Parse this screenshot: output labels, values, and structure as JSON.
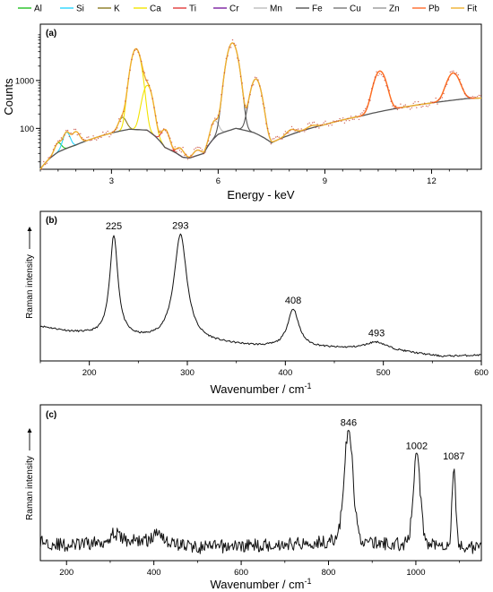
{
  "chart_data": [
    {
      "type": "line",
      "panel": "(a)",
      "xlabel": "Energy - keV",
      "ylabel": "Counts",
      "xlim": [
        1,
        13.4
      ],
      "ylim": [
        14,
        15000
      ],
      "yscale": "log",
      "x_ticks": [
        3,
        6,
        9,
        12
      ],
      "y_ticks": [
        {
          "value": 100,
          "label": "100"
        },
        {
          "value": 1000,
          "label": "1000"
        }
      ],
      "legend_position": "top",
      "legend": [
        {
          "name": "Al",
          "color": "#22c022"
        },
        {
          "name": "Si",
          "color": "#2ad6ff"
        },
        {
          "name": "K",
          "color": "#8a7a20"
        },
        {
          "name": "Ca",
          "color": "#f2e300"
        },
        {
          "name": "Ti",
          "color": "#e03a3a"
        },
        {
          "name": "Cr",
          "color": "#7a1fa0"
        },
        {
          "name": "Mn",
          "color": "#bdbdbd"
        },
        {
          "name": "Fe",
          "color": "#555555"
        },
        {
          "name": "Cu",
          "color": "#777777"
        },
        {
          "name": "Zn",
          "color": "#999999"
        },
        {
          "name": "Pb",
          "color": "#ff6a2a"
        },
        {
          "name": "Fit",
          "color": "#f0b030"
        }
      ],
      "background": {
        "x": [
          1.0,
          1.5,
          2.0,
          2.5,
          3.0,
          3.5,
          4.0,
          4.5,
          5.0,
          5.2,
          5.6,
          6.0,
          6.5,
          7.0,
          7.5,
          8.0,
          9.0,
          10.0,
          11.0,
          12.0,
          13.0,
          13.4
        ],
        "y": [
          14,
          32,
          45,
          62,
          80,
          96,
          92,
          40,
          25,
          24,
          30,
          75,
          100,
          82,
          50,
          72,
          120,
          180,
          260,
          340,
          420,
          430
        ]
      },
      "peaks": [
        {
          "x": 1.5,
          "height": 18,
          "width": 0.09,
          "element": "Al"
        },
        {
          "x": 1.74,
          "height": 45,
          "width": 0.09,
          "element": "Si"
        },
        {
          "x": 2.0,
          "height": 40,
          "width": 0.1,
          "element": "Fit"
        },
        {
          "x": 3.31,
          "height": 80,
          "width": 0.1,
          "element": "K"
        },
        {
          "x": 3.69,
          "height": 4500,
          "width": 0.12,
          "element": "Ca"
        },
        {
          "x": 4.01,
          "height": 700,
          "width": 0.12,
          "element": "Ca"
        },
        {
          "x": 4.51,
          "height": 55,
          "width": 0.1,
          "element": "Ti"
        },
        {
          "x": 4.93,
          "height": 12,
          "width": 0.1,
          "element": "Ti"
        },
        {
          "x": 5.41,
          "height": 8,
          "width": 0.1,
          "element": "Cr"
        },
        {
          "x": 5.9,
          "height": 80,
          "width": 0.1,
          "element": "Mn"
        },
        {
          "x": 6.4,
          "height": 6000,
          "width": 0.13,
          "element": "Fe"
        },
        {
          "x": 7.06,
          "height": 1000,
          "width": 0.13,
          "element": "Fe"
        },
        {
          "x": 8.05,
          "height": 20,
          "width": 0.12,
          "element": "Cu"
        },
        {
          "x": 8.64,
          "height": 12,
          "width": 0.12,
          "element": "Zn"
        },
        {
          "x": 10.55,
          "height": 1350,
          "width": 0.15,
          "element": "Pb"
        },
        {
          "x": 12.61,
          "height": 1050,
          "width": 0.16,
          "element": "Pb"
        }
      ]
    },
    {
      "type": "line",
      "panel": "(b)",
      "xlabel": "Wavenumber / cm",
      "xlabel_sup": "-1",
      "ylabel": "Raman intensity",
      "xlim": [
        150,
        600
      ],
      "ylim": [
        0,
        1.05
      ],
      "x_ticks": [
        200,
        300,
        400,
        500,
        600
      ],
      "baseline": {
        "x": [
          150,
          180,
          215,
          250,
          280,
          330,
          370,
          395,
          430,
          470,
          520,
          560,
          600
        ],
        "y": [
          0.24,
          0.2,
          0.17,
          0.15,
          0.14,
          0.12,
          0.1,
          0.09,
          0.09,
          0.08,
          0.06,
          0.03,
          0.04
        ]
      },
      "peaks": [
        {
          "x": 225,
          "height": 0.71,
          "width": 5,
          "label": "225"
        },
        {
          "x": 293,
          "height": 0.75,
          "width": 8,
          "label": "293"
        },
        {
          "x": 408,
          "height": 0.27,
          "width": 7,
          "label": "408"
        },
        {
          "x": 493,
          "height": 0.06,
          "width": 14,
          "label": "493"
        }
      ]
    },
    {
      "type": "line",
      "panel": "(c)",
      "xlabel": "Wavenumber / cm",
      "xlabel_sup": "-1",
      "ylabel": "Raman intensity",
      "xlim": [
        140,
        1150
      ],
      "ylim": [
        0,
        1.05
      ],
      "x_ticks": [
        200,
        400,
        600,
        800,
        1000
      ],
      "baseline": {
        "x": [
          140,
          200,
          300,
          400,
          500,
          600,
          700,
          800,
          830,
          900,
          950,
          1050,
          1150
        ],
        "y": [
          0.13,
          0.1,
          0.13,
          0.14,
          0.09,
          0.1,
          0.11,
          0.13,
          0.15,
          0.12,
          0.11,
          0.12,
          0.08
        ]
      },
      "peaks": [
        {
          "x": 310,
          "height": 0.05,
          "width": 12
        },
        {
          "x": 412,
          "height": 0.07,
          "width": 8
        },
        {
          "x": 846,
          "height": 0.73,
          "width": 10,
          "label": "846"
        },
        {
          "x": 1002,
          "height": 0.6,
          "width": 8,
          "label": "1002"
        },
        {
          "x": 1087,
          "height": 0.54,
          "width": 4,
          "label": "1087"
        }
      ]
    }
  ]
}
